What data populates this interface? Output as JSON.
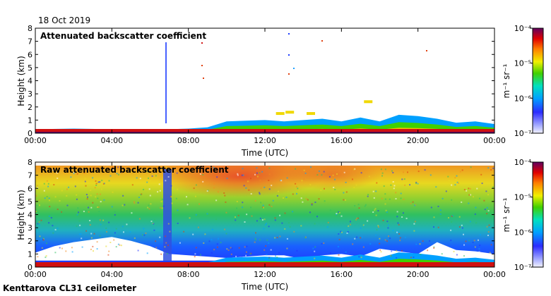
{
  "date": "18 Oct 2019",
  "footer": "Kenttarova CL31 ceilometer",
  "chart_data": [
    {
      "type": "heatmap",
      "title": "Attenuated backscatter coefficient",
      "xlabel": "Time (UTC)",
      "ylabel": "Height (km)",
      "xticks": [
        "00:00",
        "04:00",
        "08:00",
        "12:00",
        "16:00",
        "20:00",
        "00:00"
      ],
      "yticks": [
        "0",
        "1",
        "2",
        "3",
        "4",
        "5",
        "6",
        "7",
        "8"
      ],
      "xlim_hours": [
        0,
        24
      ],
      "ylim_km": [
        0,
        8
      ],
      "colorbar": {
        "unit": "m⁻¹ sr⁻¹",
        "scale": "log",
        "labels": [
          "10⁻⁷",
          "10⁻⁶",
          "10⁻⁵",
          "10⁻⁴"
        ]
      },
      "features": {
        "surface_layer_top_km": [
          [
            0,
            0.3
          ],
          [
            2,
            0.35
          ],
          [
            4,
            0.3
          ],
          [
            6,
            0.25
          ],
          [
            8,
            0.35
          ],
          [
            9,
            0.45
          ],
          [
            10,
            0.9
          ],
          [
            11,
            0.95
          ],
          [
            12,
            1.0
          ],
          [
            13,
            0.9
          ],
          [
            14,
            1.0
          ],
          [
            15,
            1.1
          ],
          [
            16,
            0.9
          ],
          [
            17,
            1.2
          ],
          [
            18,
            0.9
          ],
          [
            19,
            1.4
          ],
          [
            20,
            1.3
          ],
          [
            21,
            1.1
          ],
          [
            22,
            0.8
          ],
          [
            23,
            0.9
          ],
          [
            24,
            0.7
          ]
        ],
        "clouds": [
          {
            "time_hours": 12.8,
            "height_km": 1.5
          },
          {
            "time_hours": 13.3,
            "height_km": 1.6
          },
          {
            "time_hours": 14.4,
            "height_km": 1.5
          },
          {
            "time_hours": 17.4,
            "height_km": 2.4
          }
        ]
      }
    },
    {
      "type": "heatmap",
      "title": "Raw attenuated backscatter coefficient",
      "xlabel": "Time (UTC)",
      "ylabel": "Height (km)",
      "xticks": [
        "00:00",
        "04:00",
        "08:00",
        "12:00",
        "16:00",
        "20:00",
        "00:00"
      ],
      "yticks": [
        "0",
        "1",
        "2",
        "3",
        "4",
        "5",
        "6",
        "7",
        "8"
      ],
      "xlim_hours": [
        0,
        24
      ],
      "ylim_km": [
        0,
        8
      ],
      "colorbar": {
        "unit": "m⁻¹ sr⁻¹",
        "scale": "log",
        "labels": [
          "10⁻⁷",
          "10⁻⁶",
          "10⁻⁵",
          "10⁻⁴"
        ]
      }
    }
  ]
}
